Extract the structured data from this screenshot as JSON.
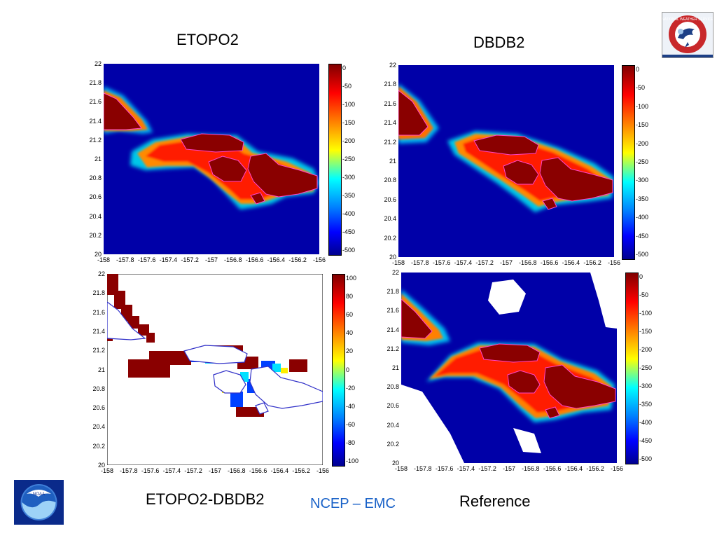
{
  "slide": {
    "footer": "NCEP – EMC",
    "footer_color": "#1a62c8"
  },
  "logos": {
    "nws_text": "NATIONAL WEATHER SERVICE",
    "noaa_text": "NOAA"
  },
  "chart_data": [
    {
      "type": "heatmap",
      "title": "ETOPO2",
      "x_ticks": [
        "-158",
        "-157.8",
        "-157.6",
        "-157.4",
        "-157.2",
        "-157",
        "-156.8",
        "-156.6",
        "-156.4",
        "-156.2",
        "-156"
      ],
      "y_ticks": [
        "22",
        "21.8",
        "21.6",
        "21.4",
        "21.2",
        "21",
        "20.8",
        "20.6",
        "20.4",
        "20.2",
        "20"
      ],
      "xlim": [
        -158,
        -156
      ],
      "ylim": [
        20,
        22
      ],
      "colorbar_ticks": [
        "0",
        "-50",
        "-100",
        "-150",
        "-200",
        "-250",
        "-300",
        "-350",
        "-400",
        "-450",
        "-500"
      ],
      "clim": [
        -500,
        0
      ]
    },
    {
      "type": "heatmap",
      "title": "DBDB2",
      "x_ticks": [
        "-158",
        "-157.8",
        "-157.6",
        "-157.4",
        "-157.2",
        "-157",
        "-156.8",
        "-156.6",
        "-156.4",
        "-156.2",
        "-156"
      ],
      "y_ticks": [
        "22",
        "21.8",
        "21.6",
        "21.4",
        "21.2",
        "21",
        "20.8",
        "20.6",
        "20.4",
        "20.2",
        "20"
      ],
      "xlim": [
        -158,
        -156
      ],
      "ylim": [
        20,
        22
      ],
      "colorbar_ticks": [
        "0",
        "-50",
        "-100",
        "-150",
        "-200",
        "-250",
        "-300",
        "-350",
        "-400",
        "-450",
        "-500"
      ],
      "clim": [
        -500,
        0
      ]
    },
    {
      "type": "heatmap",
      "title": "ETOPO2-DBDB2",
      "x_ticks": [
        "-158",
        "-157.8",
        "-157.6",
        "-157.4",
        "-157.2",
        "-157",
        "-156.8",
        "-156.6",
        "-156.4",
        "-156.2",
        "-156"
      ],
      "y_ticks": [
        "22",
        "21.8",
        "21.6",
        "21.4",
        "21.2",
        "21",
        "20.8",
        "20.6",
        "20.4",
        "20.2",
        "20"
      ],
      "xlim": [
        -158,
        -156
      ],
      "ylim": [
        20,
        22
      ],
      "colorbar_ticks": [
        "100",
        "80",
        "60",
        "40",
        "20",
        "0",
        "-20",
        "-40",
        "-60",
        "-80",
        "-100"
      ],
      "clim": [
        -100,
        100
      ]
    },
    {
      "type": "heatmap",
      "title": "Reference",
      "x_ticks": [
        "-158",
        "-157.8",
        "-157.6",
        "-157.4",
        "-157.2",
        "-157",
        "-156.8",
        "-156.6",
        "-156.4",
        "-156.2",
        "-156"
      ],
      "y_ticks": [
        "22",
        "21.8",
        "21.6",
        "21.4",
        "21.2",
        "21",
        "20.8",
        "20.6",
        "20.4",
        "20.2",
        "20"
      ],
      "xlim": [
        -158,
        -156
      ],
      "ylim": [
        20,
        22
      ],
      "colorbar_ticks": [
        "0",
        "-50",
        "-100",
        "-150",
        "-200",
        "-250",
        "-300",
        "-350",
        "-400",
        "-450",
        "-500"
      ],
      "clim": [
        -500,
        0
      ]
    }
  ]
}
